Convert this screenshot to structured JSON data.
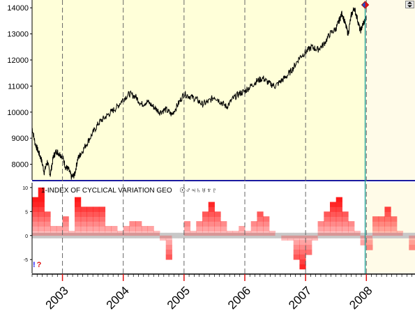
{
  "colors": {
    "price_bg": "#ffffd9",
    "price_line": "#000000",
    "indicator_bg": "#ffffff",
    "future_bg": "#fffbe8",
    "grid_dash": "#666666",
    "cursor_line": "#1aa39a",
    "bar_red": "#ff1a1a",
    "bar_grey": "#c8c8c8",
    "warn_blue": "#1a1aff",
    "warn_red": "#e01010"
  },
  "icons": {
    "cursor_marker": "diamond-marker-icon",
    "scroll_button": "scroll-up-down-icon"
  },
  "indicator": {
    "title": "1-INDEX OF CYCLICAL VARIATION GEO",
    "planet_glyphs": "☉♂♃♄♅♆♇",
    "warning_a": "!",
    "warning_b": "?"
  },
  "chart_data": [
    {
      "type": "line",
      "name": "price",
      "ylim": [
        7400,
        14300
      ],
      "yticks": [
        "14000",
        "13000",
        "12000",
        "11000",
        "10000",
        "9000",
        "8000"
      ],
      "ytick_values": [
        14000,
        13000,
        12000,
        11000,
        10000,
        9000,
        8000
      ],
      "x": [
        2002.5,
        2002.55,
        2002.6,
        2002.65,
        2002.7,
        2002.75,
        2002.8,
        2002.85,
        2002.9,
        2002.95,
        2003.0,
        2003.05,
        2003.1,
        2003.15,
        2003.2,
        2003.25,
        2003.3,
        2003.4,
        2003.5,
        2003.6,
        2003.7,
        2003.8,
        2003.9,
        2004.0,
        2004.1,
        2004.2,
        2004.3,
        2004.4,
        2004.5,
        2004.6,
        2004.7,
        2004.8,
        2004.9,
        2005.0,
        2005.1,
        2005.2,
        2005.3,
        2005.4,
        2005.5,
        2005.6,
        2005.7,
        2005.8,
        2005.9,
        2006.0,
        2006.1,
        2006.2,
        2006.3,
        2006.4,
        2006.5,
        2006.6,
        2006.7,
        2006.8,
        2006.9,
        2007.0,
        2007.1,
        2007.2,
        2007.3,
        2007.4,
        2007.5,
        2007.55,
        2007.6,
        2007.65,
        2007.7,
        2007.75,
        2007.8,
        2007.85,
        2007.9,
        2007.95,
        2008.0
      ],
      "y": [
        9400,
        8800,
        8500,
        8200,
        7700,
        8100,
        7600,
        8300,
        8500,
        8400,
        8300,
        7900,
        7800,
        7500,
        7600,
        8200,
        8400,
        8800,
        9200,
        9600,
        9800,
        10000,
        10200,
        10500,
        10700,
        10600,
        10300,
        10400,
        10200,
        10000,
        10100,
        9900,
        10300,
        10700,
        10600,
        10500,
        10300,
        10400,
        10600,
        10400,
        10200,
        10500,
        10700,
        10800,
        11000,
        11200,
        11300,
        11100,
        11000,
        11200,
        11400,
        11700,
        12100,
        12300,
        12500,
        12400,
        12600,
        13000,
        13200,
        13500,
        13800,
        13400,
        13000,
        13700,
        14000,
        13600,
        13100,
        13400,
        13600
      ]
    },
    {
      "type": "bar",
      "name": "index of cyclical variation",
      "ylim": [
        -7,
        11
      ],
      "yticks": [
        "10",
        "5",
        "0",
        "-5"
      ],
      "ytick_values": [
        10,
        5,
        0,
        -5
      ],
      "x": [
        2002.5,
        2002.6,
        2002.7,
        2002.8,
        2002.9,
        2003.0,
        2003.1,
        2003.2,
        2003.3,
        2003.4,
        2003.5,
        2003.6,
        2003.7,
        2003.8,
        2003.9,
        2004.0,
        2004.1,
        2004.2,
        2004.3,
        2004.4,
        2004.5,
        2004.6,
        2004.7,
        2004.8,
        2004.9,
        2005.0,
        2005.1,
        2005.2,
        2005.3,
        2005.4,
        2005.5,
        2005.6,
        2005.7,
        2005.8,
        2005.9,
        2006.0,
        2006.1,
        2006.2,
        2006.3,
        2006.4,
        2006.5,
        2006.6,
        2006.7,
        2006.8,
        2006.9,
        2007.0,
        2007.1,
        2007.2,
        2007.3,
        2007.4,
        2007.5,
        2007.6,
        2007.7,
        2007.8,
        2007.9,
        2008.0,
        2008.1,
        2008.2,
        2008.3,
        2008.4,
        2008.5,
        2008.6,
        2008.7,
        2008.8
      ],
      "values": [
        8,
        10,
        5,
        2,
        2,
        4,
        1,
        8,
        6,
        6,
        6,
        6,
        2,
        2,
        1,
        2,
        3,
        3,
        2,
        2,
        1,
        -1,
        -5,
        0,
        0,
        3,
        1,
        3,
        5,
        7,
        5,
        3,
        1,
        1,
        2,
        1,
        3,
        5,
        4,
        1,
        0,
        -1,
        -1,
        -5,
        -7,
        -4,
        -1,
        3,
        5,
        7,
        8,
        5,
        3,
        1,
        -2,
        -3,
        4,
        4,
        6,
        4,
        1,
        0,
        -3,
        -5
      ]
    }
  ],
  "x_axis": {
    "year_labels": [
      "2003",
      "2004",
      "2005",
      "2006",
      "2007",
      "2008"
    ],
    "year_values": [
      2003,
      2004,
      2005,
      2006,
      2007,
      2008
    ],
    "range": [
      2002.5,
      2008.8
    ],
    "cursor_x": 2007.98
  }
}
